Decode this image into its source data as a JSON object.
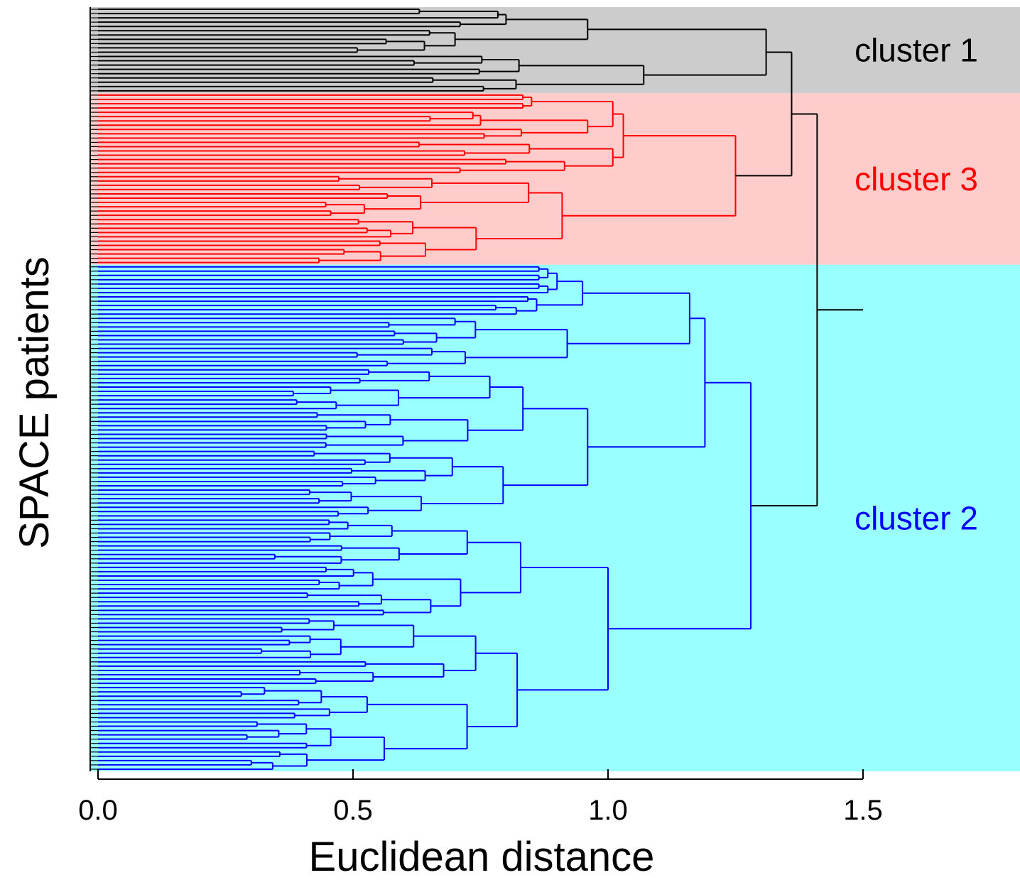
{
  "chart_data": {
    "type": "dendrogram",
    "title": "",
    "xlabel": "Euclidean distance",
    "ylabel": "SPACE patients",
    "xlim": [
      -0.02,
      1.81
    ],
    "x_ticks": [
      {
        "value": 0.0,
        "label": "0.0"
      },
      {
        "value": 0.5,
        "label": "0.5"
      },
      {
        "value": 1.0,
        "label": "1.0"
      },
      {
        "value": 1.5,
        "label": "1.5"
      }
    ],
    "n_leaves": 178,
    "root_height": 1.41,
    "root_stem_end": 1.5,
    "clusters": [
      {
        "label": "cluster 1",
        "color": "#000000",
        "band_color": "#cccccc",
        "leaves": 20,
        "merge_height": 1.31,
        "sub_heights": [
          0.96,
          1.07,
          0.8,
          0.7,
          0.89,
          0.71,
          0.63,
          0.65
        ]
      },
      {
        "label": "cluster 3",
        "color": "#ff0000",
        "band_color": "#ffcccc",
        "leaves": 40,
        "merge_height": 1.25,
        "sub_heights": [
          1.03,
          0.91,
          1.17,
          1.1,
          0.85,
          0.96,
          0.9,
          0.86,
          0.75,
          0.83,
          0.78
        ]
      },
      {
        "label": "cluster 2",
        "color": "#0000ff",
        "band_color": "#99ffff",
        "leaves": 118,
        "merge_height": 1.28,
        "sub_heights": [
          1.19,
          1.0,
          1.16,
          0.96,
          0.95,
          0.92,
          0.9,
          0.86,
          1.25,
          1.18,
          1.09,
          1.05,
          0.87,
          0.85,
          0.82,
          0.78,
          0.74,
          0.72,
          0.7
        ]
      }
    ],
    "cluster_order": [
      "cluster 1",
      "cluster 3",
      "cluster 2"
    ],
    "top_merge": {
      "first": "cluster 1",
      "second": "cluster 3",
      "height": 1.36
    }
  }
}
